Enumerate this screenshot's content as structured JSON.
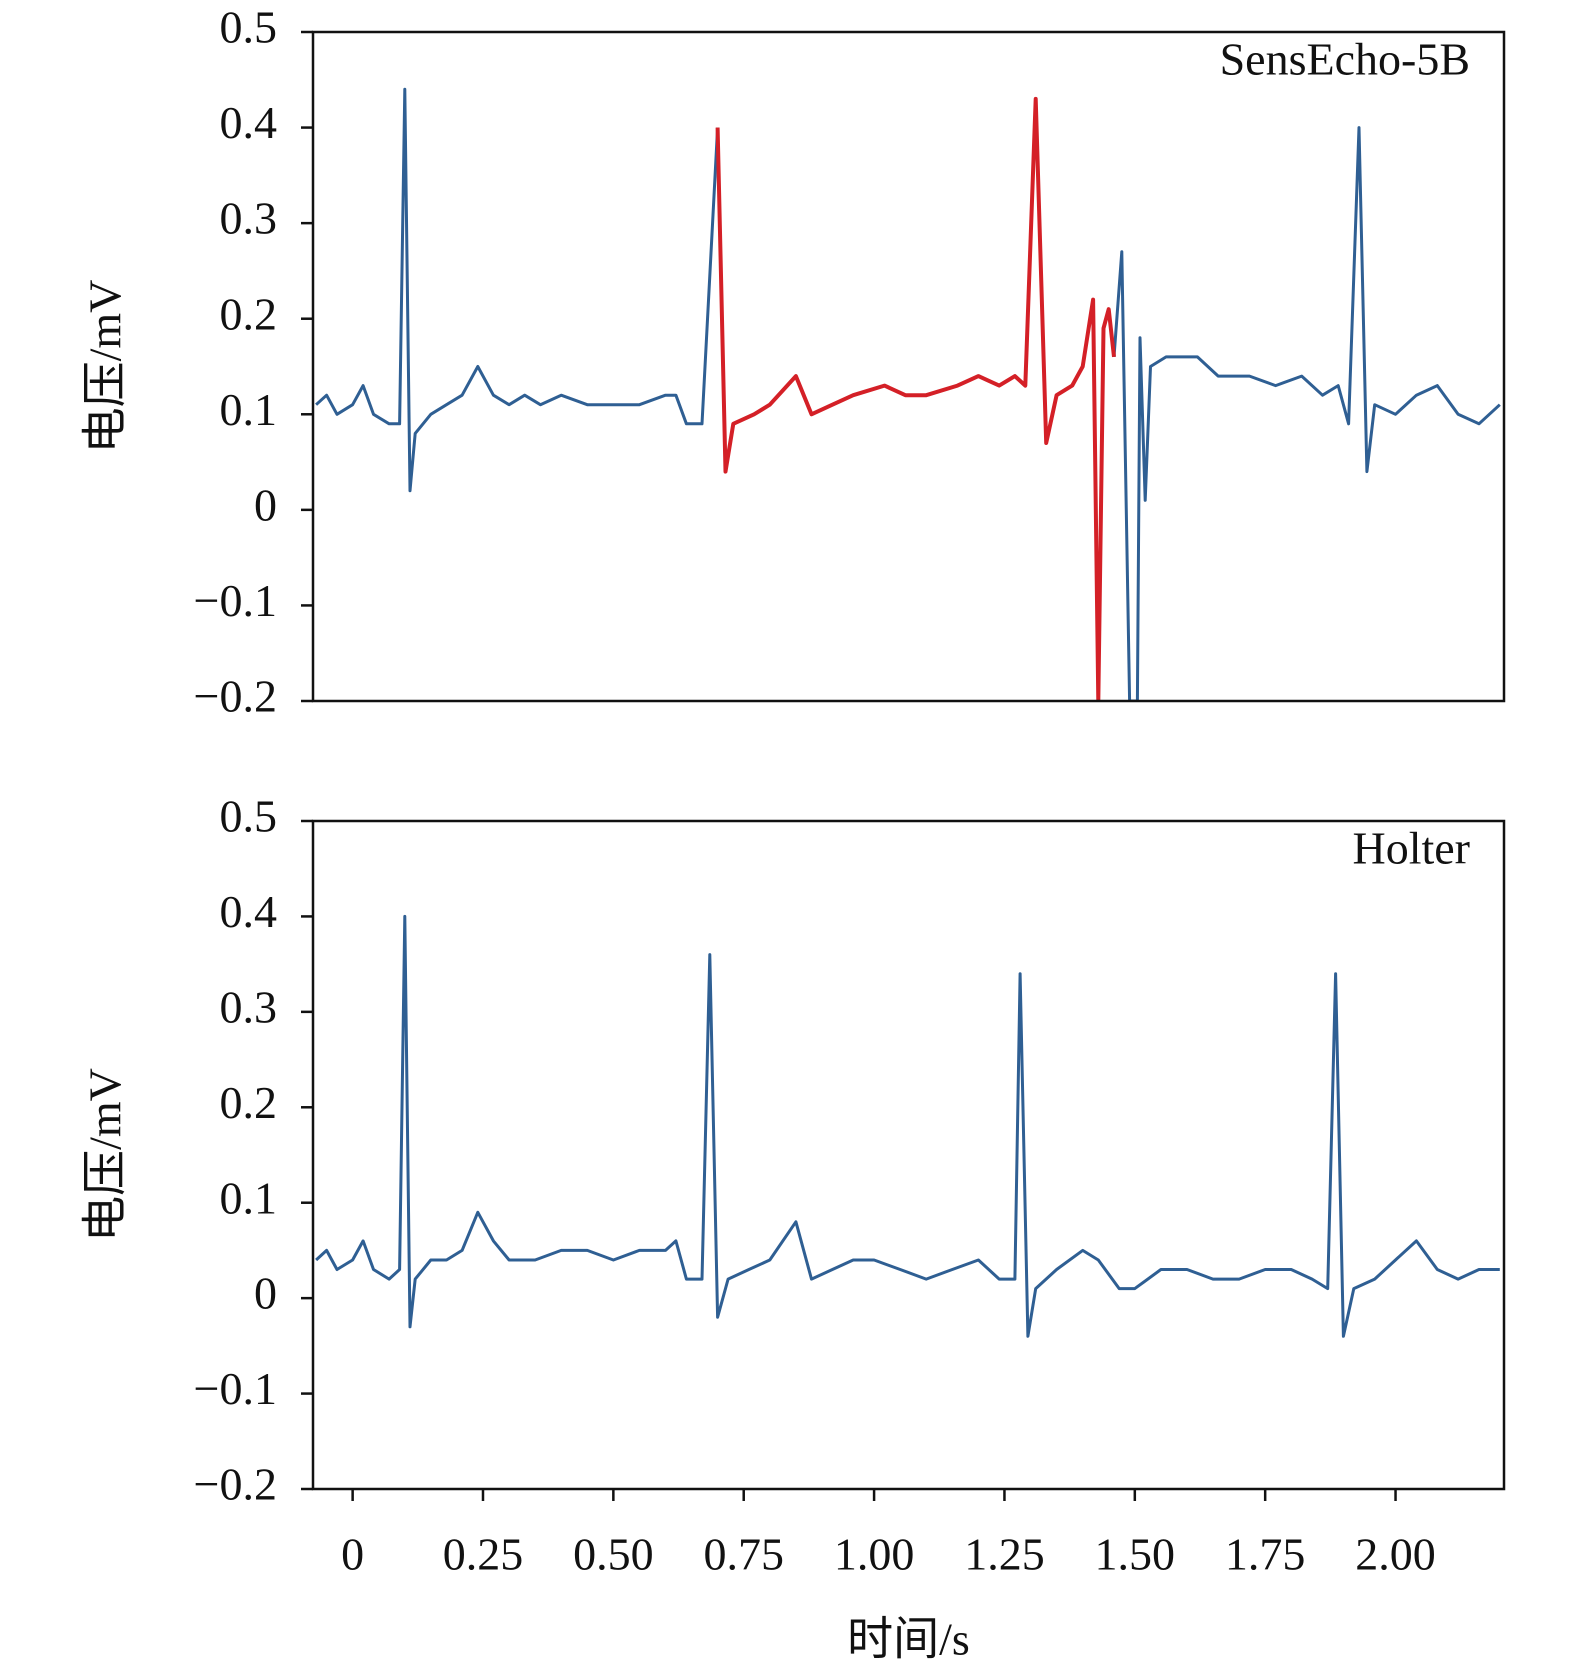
{
  "chart_data": [
    {
      "type": "line",
      "annotation": "SensEcho-5B",
      "ylabel": "电压/mV",
      "xlim": [
        -0.076,
        2.208
      ],
      "ylim": [
        -0.2,
        0.5
      ],
      "yticks": [
        {
          "value": -0.2,
          "label": "−0.2"
        },
        {
          "value": -0.1,
          "label": "−0.1"
        },
        0,
        0.1,
        0.2,
        0.3,
        0.4,
        0.5
      ],
      "x": [
        -0.07,
        -0.05,
        -0.03,
        0,
        0.02,
        0.04,
        0.07,
        0.09,
        0.1,
        0.11,
        0.12,
        0.15,
        0.18,
        0.21,
        0.24,
        0.27,
        0.3,
        0.33,
        0.36,
        0.4,
        0.45,
        0.5,
        0.55,
        0.6,
        0.62,
        0.64,
        0.67,
        0.7,
        0.715,
        0.73,
        0.77,
        0.8,
        0.85,
        0.88,
        0.92,
        0.96,
        1.02,
        1.06,
        1.1,
        1.16,
        1.2,
        1.24,
        1.27,
        1.29,
        1.31,
        1.33,
        1.35,
        1.38,
        1.4,
        1.42,
        1.43,
        1.44,
        1.45,
        1.46,
        1.475,
        1.49,
        1.505,
        1.51,
        1.52,
        1.53,
        1.56,
        1.62,
        1.66,
        1.72,
        1.77,
        1.82,
        1.86,
        1.89,
        1.91,
        1.93,
        1.945,
        1.96,
        2.0,
        2.04,
        2.08,
        2.12,
        2.16,
        2.2
      ],
      "series": [
        {
          "color": "#2f5f93",
          "values": [
            0.11,
            0.12,
            0.1,
            0.11,
            0.13,
            0.1,
            0.09,
            0.09,
            0.44,
            0.02,
            0.08,
            0.1,
            0.11,
            0.12,
            0.15,
            0.12,
            0.11,
            0.12,
            0.11,
            0.12,
            0.11,
            0.11,
            0.11,
            0.12,
            0.12,
            0.09,
            0.09,
            0.4,
            null,
            null,
            null,
            null,
            null,
            null,
            null,
            null,
            null,
            null,
            null,
            null,
            null,
            null,
            null,
            null,
            null,
            null,
            null,
            null,
            null,
            null,
            null,
            null,
            null,
            0.16,
            0.27,
            -0.2,
            -0.2,
            0.18,
            0.01,
            0.15,
            0.16,
            0.16,
            0.14,
            0.14,
            0.13,
            0.14,
            0.12,
            0.13,
            0.09,
            0.4,
            0.04,
            0.11,
            0.1,
            0.12,
            0.13,
            0.1,
            0.09,
            0.11
          ]
        },
        {
          "color": "#d42027",
          "values": [
            null,
            null,
            null,
            null,
            null,
            null,
            null,
            null,
            null,
            null,
            null,
            null,
            null,
            null,
            null,
            null,
            null,
            null,
            null,
            null,
            null,
            null,
            null,
            null,
            null,
            null,
            null,
            0.4,
            0.04,
            0.09,
            0.1,
            0.11,
            0.14,
            0.1,
            0.11,
            0.12,
            0.13,
            0.12,
            0.12,
            0.13,
            0.14,
            0.13,
            0.14,
            0.13,
            0.43,
            0.07,
            0.12,
            0.13,
            0.15,
            0.22,
            -0.2,
            0.19,
            0.21,
            0.16,
            null,
            null,
            null,
            null,
            null,
            null,
            null,
            null,
            null,
            null,
            null,
            null,
            null,
            null,
            null,
            null,
            null,
            null,
            null,
            null,
            null,
            null,
            null,
            null
          ]
        }
      ]
    },
    {
      "type": "line",
      "annotation": "Holter",
      "ylabel": "电压/mV",
      "xlabel": "时间/s",
      "xlim": [
        -0.076,
        2.208
      ],
      "ylim": [
        -0.2,
        0.5
      ],
      "yticks": [
        {
          "value": -0.2,
          "label": "−0.2"
        },
        {
          "value": -0.1,
          "label": "−0.1"
        },
        0,
        0.1,
        0.2,
        0.3,
        0.4,
        0.5
      ],
      "xticks": [
        0,
        0.25,
        {
          "value": 0.5,
          "label": "0.50"
        },
        0.75,
        {
          "value": 1,
          "label": "1.00"
        },
        1.25,
        {
          "value": 1.5,
          "label": "1.50"
        },
        1.75,
        {
          "value": 2,
          "label": "2.00"
        }
      ],
      "x": [
        -0.07,
        -0.05,
        -0.03,
        0,
        0.02,
        0.04,
        0.07,
        0.09,
        0.1,
        0.11,
        0.12,
        0.15,
        0.18,
        0.21,
        0.24,
        0.27,
        0.3,
        0.35,
        0.4,
        0.45,
        0.5,
        0.55,
        0.6,
        0.62,
        0.64,
        0.67,
        0.685,
        0.7,
        0.72,
        0.76,
        0.8,
        0.85,
        0.88,
        0.92,
        0.96,
        1.0,
        1.05,
        1.1,
        1.15,
        1.2,
        1.24,
        1.27,
        1.28,
        1.295,
        1.31,
        1.35,
        1.4,
        1.43,
        1.47,
        1.5,
        1.55,
        1.6,
        1.65,
        1.7,
        1.75,
        1.8,
        1.84,
        1.87,
        1.885,
        1.9,
        1.92,
        1.96,
        2.0,
        2.04,
        2.08,
        2.12,
        2.16,
        2.2
      ],
      "series": [
        {
          "color": "#2f5f93",
          "values": [
            0.04,
            0.05,
            0.03,
            0.04,
            0.06,
            0.03,
            0.02,
            0.03,
            0.4,
            -0.03,
            0.02,
            0.04,
            0.04,
            0.05,
            0.09,
            0.06,
            0.04,
            0.04,
            0.05,
            0.05,
            0.04,
            0.05,
            0.05,
            0.06,
            0.02,
            0.02,
            0.36,
            -0.02,
            0.02,
            0.03,
            0.04,
            0.08,
            0.02,
            0.03,
            0.04,
            0.04,
            0.03,
            0.02,
            0.03,
            0.04,
            0.02,
            0.02,
            0.34,
            -0.04,
            0.01,
            0.03,
            0.05,
            0.04,
            0.01,
            0.01,
            0.03,
            0.03,
            0.02,
            0.02,
            0.03,
            0.03,
            0.02,
            0.01,
            0.34,
            -0.04,
            0.01,
            0.02,
            0.04,
            0.06,
            0.03,
            0.02,
            0.03,
            0.03
          ]
        }
      ]
    }
  ]
}
